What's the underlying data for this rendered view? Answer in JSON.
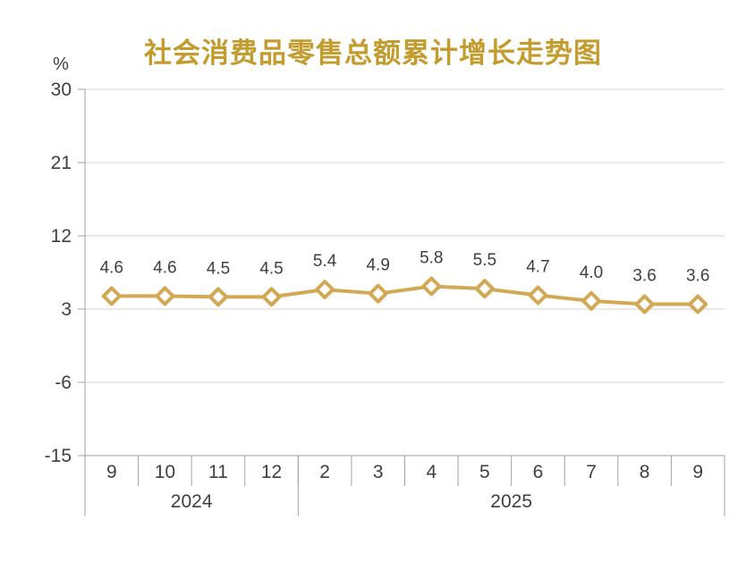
{
  "colors": {
    "title": "#C49C2E",
    "series_line": "#D3A855",
    "marker_fill": "#FFFFFF",
    "gridline": "#D6D6D6",
    "axis_line": "#A3A3A3",
    "text": "#3F3F3F",
    "background": "#FFFFFF"
  },
  "chart_data": {
    "type": "line",
    "title": "社会消费品零售总额累计增长走势图",
    "ylabel": "%",
    "xlabel": "",
    "categories": [
      "9",
      "10",
      "11",
      "12",
      "2",
      "3",
      "4",
      "5",
      "6",
      "7",
      "8",
      "9"
    ],
    "values": [
      4.6,
      4.6,
      4.5,
      4.5,
      5.4,
      4.9,
      5.8,
      5.5,
      4.7,
      4.0,
      3.6,
      3.6
    ],
    "value_labels": [
      "4.6",
      "4.6",
      "4.5",
      "4.5",
      "5.4",
      "4.9",
      "5.8",
      "5.5",
      "4.7",
      "4.0",
      "3.6",
      "3.6"
    ],
    "year_groups": [
      {
        "label": "2024",
        "start": 0,
        "end": 3
      },
      {
        "label": "2025",
        "start": 4,
        "end": 11
      }
    ],
    "yticks": [
      30,
      21,
      12,
      3,
      -6,
      -15
    ],
    "ylim": [
      -15,
      30
    ],
    "grid": "horizontal",
    "legend": "none",
    "marker": "diamond",
    "data_labels": true
  }
}
